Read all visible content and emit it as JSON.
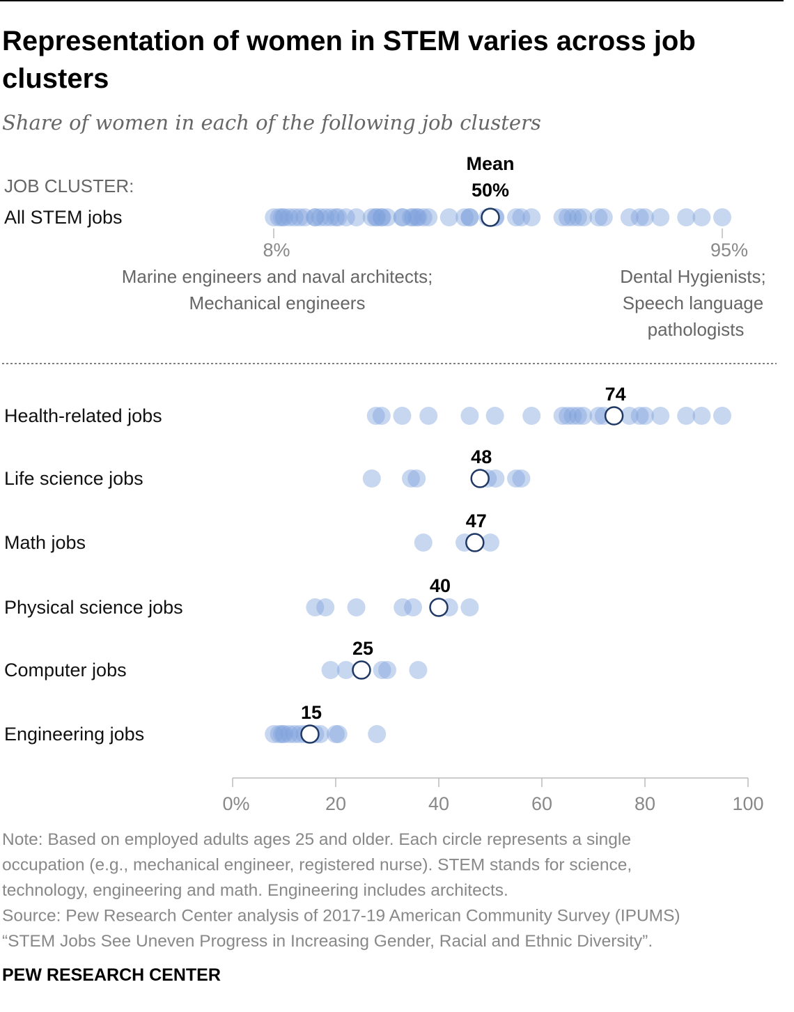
{
  "title_line1": "Representation of women in STEM varies across job",
  "title_line2": "clusters",
  "subtitle": "Share of women in each of the following job clusters",
  "colors": {
    "dot": "#7b9fdb",
    "mean_stroke": "#1f3864",
    "rule": "#000000"
  },
  "chart_data": {
    "type": "scatter",
    "subtype": "dot strip plot",
    "xlim": [
      0,
      100
    ],
    "xticks": [
      "0%",
      "20",
      "40",
      "60",
      "80",
      "100"
    ],
    "xtick_values": [
      0,
      20,
      40,
      60,
      80,
      100
    ],
    "header_label": "JOB CLUSTER:",
    "mean_header": "Mean",
    "all_stem": {
      "label": "All STEM jobs",
      "mean": 50,
      "mean_label": "50%",
      "values": [
        8,
        9,
        9.6,
        10,
        11,
        12,
        13,
        14,
        16,
        16,
        17,
        18,
        19,
        20,
        20.5,
        22,
        24,
        27,
        27.8,
        28,
        28.9,
        29,
        30,
        32.9,
        33,
        34.6,
        35,
        35.7,
        36,
        37,
        38,
        42,
        45,
        46,
        46,
        49.5,
        50,
        50.9,
        51,
        55,
        56,
        58,
        64,
        65,
        66,
        67,
        68,
        71,
        72,
        77,
        79,
        80,
        83,
        88,
        91,
        95
      ],
      "min_label": "8%",
      "min_value": 8,
      "min_desc": [
        "Marine engineers and naval architects;",
        "Mechanical engineers"
      ],
      "max_label": "95%",
      "max_value": 95,
      "max_desc": [
        "Dental Hygienists;",
        "Speech language",
        "pathologists"
      ]
    },
    "clusters": [
      {
        "label": "Health-related jobs",
        "mean": 74,
        "mean_label": "74",
        "values": [
          27.8,
          28.9,
          32.9,
          38,
          46,
          50.9,
          58,
          64,
          65,
          66,
          67,
          68,
          71,
          72,
          77,
          79,
          80,
          83,
          88,
          91,
          95
        ]
      },
      {
        "label": "Life science jobs",
        "mean": 48,
        "mean_label": "48",
        "values": [
          27,
          34.6,
          35.7,
          49.5,
          51,
          55,
          56
        ]
      },
      {
        "label": "Math jobs",
        "mean": 47,
        "mean_label": "47",
        "values": [
          37,
          45,
          50
        ]
      },
      {
        "label": "Physical science jobs",
        "mean": 40,
        "mean_label": "40",
        "values": [
          16,
          18,
          24,
          33,
          35,
          42,
          46
        ]
      },
      {
        "label": "Computer jobs",
        "mean": 25,
        "mean_label": "25",
        "values": [
          19,
          22,
          29,
          30,
          36
        ]
      },
      {
        "label": "Engineering jobs",
        "mean": 15,
        "mean_label": "15",
        "values": [
          8,
          9,
          9.6,
          10,
          11,
          12,
          13,
          14,
          16,
          17,
          20,
          20.5,
          28
        ]
      }
    ]
  },
  "notes": [
    "Note: Based on employed adults ages 25 and older. Each circle represents a single",
    "occupation (e.g., mechanical engineer, registered nurse). STEM stands for science,",
    "technology, engineering and math. Engineering includes architects.",
    "Source: Pew Research Center analysis of 2017-19 American Community Survey (IPUMS)",
    "“STEM Jobs See Uneven Progress in Increasing Gender, Racial and Ethnic Diversity”."
  ],
  "footer": "PEW RESEARCH CENTER"
}
